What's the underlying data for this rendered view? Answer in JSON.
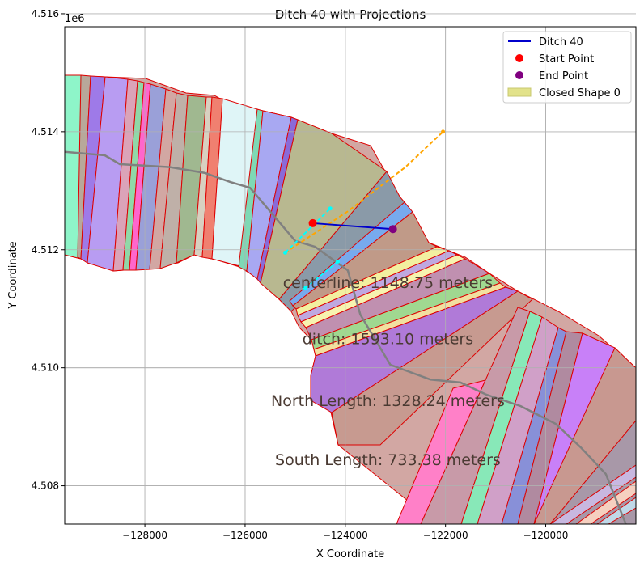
{
  "chart_data": {
    "type": "map",
    "title": "Ditch 40 with Projections",
    "xlabel": "X Coordinate",
    "ylabel": "Y Coordinate",
    "xlim": [
      -129600,
      -118200
    ],
    "ylim": [
      4507350,
      4515780
    ],
    "offset_label": "1e6",
    "xticks": [
      -128000,
      -126000,
      -124000,
      -122000,
      -120000
    ],
    "xtick_labels": [
      "−128000",
      "−126000",
      "−124000",
      "−122000",
      "−120000"
    ],
    "yticks": [
      4508000,
      4510000,
      4512000,
      4514000,
      4516000
    ],
    "ytick_labels": [
      "4.508",
      "4.510",
      "4.512",
      "4.514",
      "4.516"
    ],
    "grid": true,
    "legend": {
      "position": "top-right",
      "entries": [
        {
          "label": "Ditch 40",
          "kind": "line",
          "color": "#0000cc"
        },
        {
          "label": "Start Point",
          "kind": "dot",
          "color": "#ff0000"
        },
        {
          "label": "End Point",
          "kind": "dot",
          "color": "#800080"
        },
        {
          "label": "Closed Shape 0",
          "kind": "patch",
          "color": "#e2e28a"
        }
      ]
    },
    "ditch_line": {
      "name": "Ditch 40",
      "color": "#0000cc",
      "x": [
        -124650,
        -123050
      ],
      "y": [
        4512450,
        4512350
      ]
    },
    "start_point": {
      "name": "Start Point",
      "x": -124650,
      "y": 4512450,
      "color": "#ff0000"
    },
    "end_point": {
      "name": "End Point",
      "x": -123050,
      "y": 4512350,
      "color": "#800080"
    },
    "centerline": {
      "color": "#808080",
      "x": [
        -129600,
        -128800,
        -128500,
        -127500,
        -126800,
        -126300,
        -125900,
        -125000,
        -124600,
        -123950,
        -123700,
        -123100,
        -122300,
        -121700,
        -121200,
        -120500,
        -119800,
        -119300,
        -118800,
        -118400
      ],
      "y": [
        4513660,
        4513600,
        4513450,
        4513400,
        4513300,
        4513150,
        4513050,
        4512150,
        4512050,
        4511650,
        4510900,
        4510050,
        4509800,
        4509750,
        4509550,
        4509350,
        4509050,
        4508650,
        4508200,
        4507350
      ]
    },
    "projection_lines": [
      {
        "color": "#ffa500",
        "x": [
          -125200,
          -123950,
          -122800,
          -122050
        ],
        "y": [
          4511950,
          4512650,
          4513400,
          4514000
        ]
      },
      {
        "color": "#00ffff",
        "x": [
          -125200,
          -124300
        ],
        "y": [
          4511950,
          4512700
        ]
      },
      {
        "color": "#00ffff",
        "x": [
          -124800,
          -124150
        ],
        "y": [
          4511350,
          4511800
        ]
      }
    ],
    "annotations": [
      {
        "text": "centerline: 1148.75 meters",
        "x": -123150,
        "y": 4511350
      },
      {
        "text": "ditch: 1593.10 meters",
        "x": -123150,
        "y": 4510400
      },
      {
        "text": "North Length: 1328.24 meters",
        "x": -123150,
        "y": 4509350
      },
      {
        "text": "South Length: 733.38 meters",
        "x": -123150,
        "y": 4508350
      }
    ],
    "polygon_outline_color": "#dd0000"
  }
}
